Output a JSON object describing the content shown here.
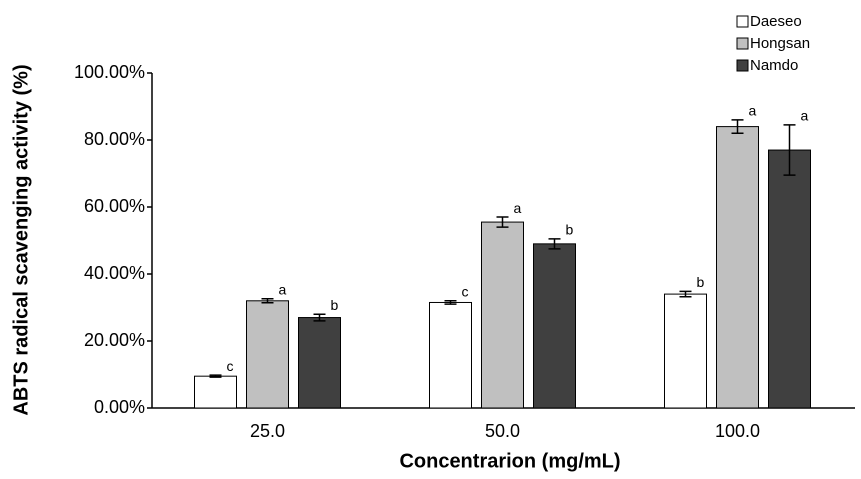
{
  "chart_data": {
    "type": "bar",
    "x_label": "Concentrarion (mg/mL)",
    "y_label": "ABTS radical scavenging activity (%)",
    "categories": [
      "25.0",
      "50.0",
      "100.0"
    ],
    "series": [
      {
        "name": "Daeseo",
        "color": "#ffffff",
        "values": [
          9.5,
          31.5,
          34
        ],
        "errors": [
          0.3,
          0.5,
          0.8
        ],
        "annotations": [
          "c",
          "c",
          "b"
        ]
      },
      {
        "name": "Hongsan",
        "color": "#c0c0c0",
        "values": [
          32,
          55.5,
          84
        ],
        "errors": [
          0.6,
          1.5,
          2
        ],
        "annotations": [
          "a",
          "a",
          "a"
        ]
      },
      {
        "name": "Namdo",
        "color": "#404040",
        "values": [
          27,
          49,
          77
        ],
        "errors": [
          1,
          1.5,
          7.5
        ],
        "annotations": [
          "b",
          "b",
          "a"
        ]
      }
    ],
    "ylim": [
      0,
      100
    ],
    "yticks": [
      {
        "value": 0,
        "label": "0.00%"
      },
      {
        "value": 20,
        "label": "20.00%"
      },
      {
        "value": 40,
        "label": "40.00%"
      },
      {
        "value": 60,
        "label": "60.00%"
      },
      {
        "value": 80,
        "label": "80.00%"
      },
      {
        "value": 100,
        "label": "100.00%"
      }
    ],
    "legend": "top-right"
  }
}
